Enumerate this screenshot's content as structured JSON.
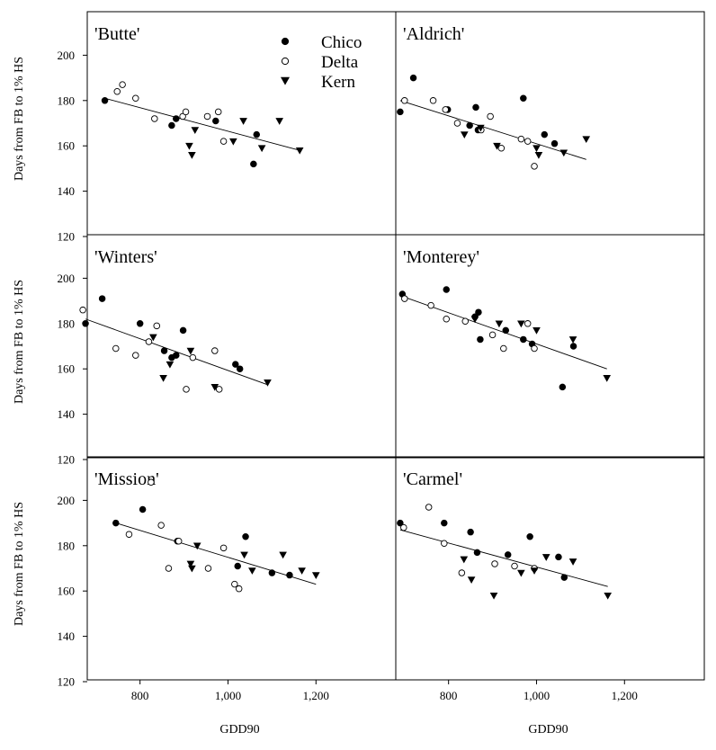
{
  "chart_data": {
    "type": "scatter",
    "ylabel": "Days from FB to 1% HS",
    "xlabel": "GDD90",
    "xlim": [
      680,
      1300
    ],
    "ylim": [
      120,
      220
    ],
    "xticks": [
      800,
      1000,
      1200
    ],
    "xtick_labels": [
      "800",
      "1,000",
      "1,200"
    ],
    "yticks": [
      120,
      140,
      160,
      180,
      200
    ],
    "ytick_labels": [
      "120",
      "140",
      "160",
      "180",
      "200"
    ],
    "grid": false,
    "legend": {
      "placement": "top-right of first panel",
      "entries": [
        {
          "name": "Chico",
          "marker": "filled-circle"
        },
        {
          "name": "Delta",
          "marker": "open-circle"
        },
        {
          "name": "Kern",
          "marker": "filled-triangle-down"
        }
      ]
    },
    "panels": [
      {
        "title": "'Butte'",
        "series": [
          {
            "name": "Chico",
            "points": [
              [
                720,
                180
              ],
              [
                872,
                169
              ],
              [
                882,
                172
              ],
              [
                972,
                171
              ],
              [
                1058,
                152
              ],
              [
                1065,
                165
              ]
            ]
          },
          {
            "name": "Delta",
            "points": [
              [
                748,
                184
              ],
              [
                760,
                187
              ],
              [
                790,
                181
              ],
              [
                833,
                172
              ],
              [
                897,
                173
              ],
              [
                904,
                175
              ],
              [
                953,
                173
              ],
              [
                978,
                175
              ],
              [
                990,
                162
              ]
            ]
          },
          {
            "name": "Kern",
            "points": [
              [
                912,
                160
              ],
              [
                918,
                156
              ],
              [
                925,
                167
              ],
              [
                1012,
                162
              ],
              [
                1035,
                171
              ],
              [
                1077,
                159
              ],
              [
                1117,
                171
              ],
              [
                1163,
                158
              ]
            ]
          }
        ],
        "trendline": [
          [
            720,
            181
          ],
          [
            1163,
            158
          ]
        ]
      },
      {
        "title": "'Aldrich'",
        "series": [
          {
            "name": "Chico",
            "points": [
              [
                690,
                175
              ],
              [
                720,
                190
              ],
              [
                798,
                176
              ],
              [
                848,
                169
              ],
              [
                862,
                177
              ],
              [
                867,
                167
              ],
              [
                970,
                181
              ],
              [
                1018,
                165
              ],
              [
                1041,
                161
              ]
            ]
          },
          {
            "name": "Delta",
            "points": [
              [
                700,
                180
              ],
              [
                765,
                180
              ],
              [
                793,
                176
              ],
              [
                820,
                170
              ],
              [
                874,
                167
              ],
              [
                895,
                173
              ],
              [
                920,
                159
              ],
              [
                965,
                163
              ],
              [
                980,
                162
              ],
              [
                995,
                151
              ]
            ]
          },
          {
            "name": "Kern",
            "points": [
              [
                836,
                165
              ],
              [
                873,
                168
              ],
              [
                910,
                160
              ],
              [
                1000,
                159
              ],
              [
                1005,
                156
              ],
              [
                1062,
                157
              ],
              [
                1113,
                163
              ]
            ]
          }
        ],
        "trendline": [
          [
            690,
            180
          ],
          [
            1113,
            154
          ]
        ]
      },
      {
        "title": "'Winters'",
        "series": [
          {
            "name": "Chico",
            "points": [
              [
                676,
                180
              ],
              [
                714,
                191
              ],
              [
                800,
                180
              ],
              [
                855,
                168
              ],
              [
                872,
                165
              ],
              [
                882,
                166
              ],
              [
                898,
                177
              ],
              [
                1017,
                162
              ],
              [
                1027,
                160
              ]
            ]
          },
          {
            "name": "Delta",
            "points": [
              [
                670,
                186
              ],
              [
                745,
                169
              ],
              [
                790,
                166
              ],
              [
                820,
                172
              ],
              [
                838,
                179
              ],
              [
                905,
                151
              ],
              [
                920,
                165
              ],
              [
                970,
                168
              ],
              [
                980,
                151
              ]
            ]
          },
          {
            "name": "Kern",
            "points": [
              [
                830,
                174
              ],
              [
                853,
                156
              ],
              [
                868,
                162
              ],
              [
                915,
                168
              ],
              [
                970,
                152
              ],
              [
                1090,
                154
              ]
            ]
          }
        ],
        "trendline": [
          [
            676,
            182
          ],
          [
            1090,
            153
          ]
        ]
      },
      {
        "title": "'Monterey'",
        "series": [
          {
            "name": "Chico",
            "points": [
              [
                695,
                193
              ],
              [
                795,
                195
              ],
              [
                860,
                183
              ],
              [
                868,
                185
              ],
              [
                872,
                173
              ],
              [
                930,
                177
              ],
              [
                970,
                173
              ],
              [
                990,
                171
              ],
              [
                1059,
                152
              ],
              [
                1084,
                170
              ]
            ]
          },
          {
            "name": "Delta",
            "points": [
              [
                700,
                191
              ],
              [
                760,
                188
              ],
              [
                795,
                182
              ],
              [
                838,
                181
              ],
              [
                900,
                175
              ],
              [
                925,
                169
              ],
              [
                980,
                180
              ],
              [
                995,
                169
              ]
            ]
          },
          {
            "name": "Kern",
            "points": [
              [
                860,
                182
              ],
              [
                915,
                180
              ],
              [
                965,
                180
              ],
              [
                1000,
                177
              ],
              [
                1083,
                173
              ],
              [
                1160,
                156
              ]
            ]
          }
        ],
        "trendline": [
          [
            695,
            192
          ],
          [
            1160,
            160
          ]
        ]
      },
      {
        "title": "'Mission'",
        "series": [
          {
            "name": "Chico",
            "points": [
              [
                745,
                190
              ],
              [
                806,
                196
              ],
              [
                885,
                182
              ],
              [
                1022,
                171
              ],
              [
                1040,
                184
              ],
              [
                1100,
                168
              ],
              [
                1140,
                167
              ]
            ]
          },
          {
            "name": "Delta",
            "points": [
              [
                775,
                185
              ],
              [
                825,
                208
              ],
              [
                848,
                189
              ],
              [
                865,
                170
              ],
              [
                888,
                182
              ],
              [
                955,
                170
              ],
              [
                990,
                179
              ],
              [
                1015,
                163
              ],
              [
                1025,
                161
              ]
            ]
          },
          {
            "name": "Kern",
            "points": [
              [
                915,
                172
              ],
              [
                918,
                170
              ],
              [
                930,
                180
              ],
              [
                1037,
                176
              ],
              [
                1055,
                169
              ],
              [
                1125,
                176
              ],
              [
                1168,
                169
              ],
              [
                1200,
                167
              ]
            ]
          }
        ],
        "trendline": [
          [
            745,
            190
          ],
          [
            1200,
            163
          ]
        ]
      },
      {
        "title": "'Carmel'",
        "series": [
          {
            "name": "Chico",
            "points": [
              [
                690,
                190
              ],
              [
                790,
                190
              ],
              [
                850,
                186
              ],
              [
                865,
                177
              ],
              [
                935,
                176
              ],
              [
                985,
                184
              ],
              [
                1050,
                175
              ],
              [
                1063,
                166
              ]
            ]
          },
          {
            "name": "Delta",
            "points": [
              [
                698,
                188
              ],
              [
                755,
                197
              ],
              [
                790,
                181
              ],
              [
                830,
                168
              ],
              [
                905,
                172
              ],
              [
                950,
                171
              ],
              [
                995,
                170
              ]
            ]
          },
          {
            "name": "Kern",
            "points": [
              [
                835,
                174
              ],
              [
                852,
                165
              ],
              [
                903,
                158
              ],
              [
                965,
                168
              ],
              [
                995,
                169
              ],
              [
                1022,
                175
              ],
              [
                1083,
                173
              ],
              [
                1162,
                158
              ]
            ]
          }
        ],
        "trendline": [
          [
            690,
            187
          ],
          [
            1162,
            162
          ]
        ]
      }
    ]
  }
}
